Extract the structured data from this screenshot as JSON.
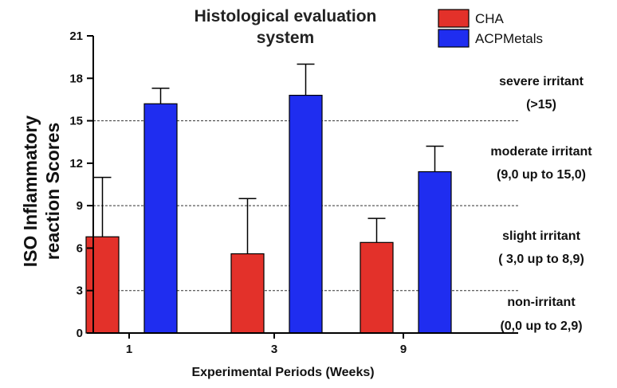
{
  "chart_data": {
    "type": "bar",
    "title": [
      "Histological evaluation",
      "system"
    ],
    "xlabel": "Experimental Periods (Weeks)",
    "ylabel": [
      "ISO Inflammatory",
      "reaction Scores"
    ],
    "categories": [
      "1",
      "3",
      "9"
    ],
    "ylim": [
      0,
      21
    ],
    "yticks": [
      0,
      3,
      6,
      9,
      12,
      15,
      18,
      21
    ],
    "series": [
      {
        "name": "CHA",
        "color": "#e3312a",
        "values": [
          6.8,
          5.6,
          6.4
        ],
        "errors": [
          4.2,
          3.9,
          1.7
        ]
      },
      {
        "name": "ACPMetals",
        "color": "#1f2df0",
        "values": [
          16.2,
          16.8,
          11.4
        ],
        "errors": [
          1.1,
          2.2,
          1.8
        ]
      }
    ],
    "thresholds": [
      3,
      9,
      15
    ],
    "zones": [
      {
        "label": "severe irritant",
        "range": "(>15)"
      },
      {
        "label": "moderate irritant",
        "range": "(9,0 up to 15,0)"
      },
      {
        "label": "slight irritant",
        "range": "( 3,0 up to 8,9)"
      },
      {
        "label": "non-irritant",
        "range": "(0,0 up to 2,9)"
      }
    ],
    "legend_position": "top-right"
  }
}
